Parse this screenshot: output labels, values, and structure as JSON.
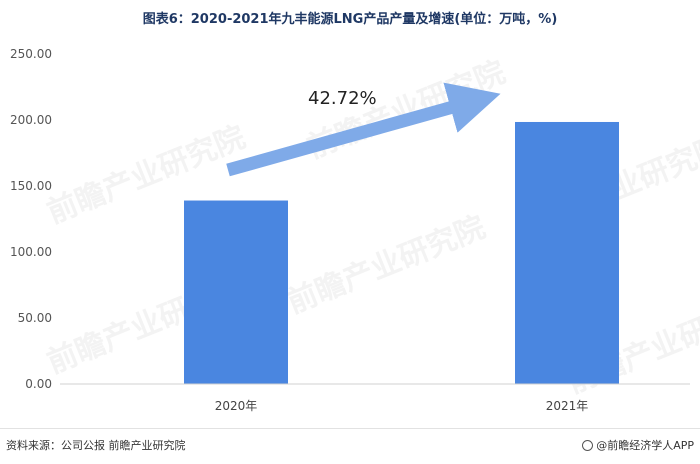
{
  "title": "图表6：2020-2021年九丰能源LNG产品产量及增速(单位：万吨，%)",
  "source": "资料来源：公司公报 前瞻产业研究院",
  "brand": "@前瞻经济学人APP",
  "watermark": "前瞻产业研究院",
  "colors": {
    "bar": "#4a86e0",
    "arrow": "#7faae8",
    "axis": "#d0d0d0",
    "title": "#1f3864"
  },
  "chart_data": {
    "type": "bar",
    "categories": [
      "2020年",
      "2021年"
    ],
    "values": [
      139.0,
      198.5
    ],
    "ylim": [
      0,
      250
    ],
    "yticks": [
      "0.00",
      "50.00",
      "100.00",
      "150.00",
      "200.00",
      "250.00"
    ],
    "growth_label": "42.72%",
    "grid": false
  }
}
